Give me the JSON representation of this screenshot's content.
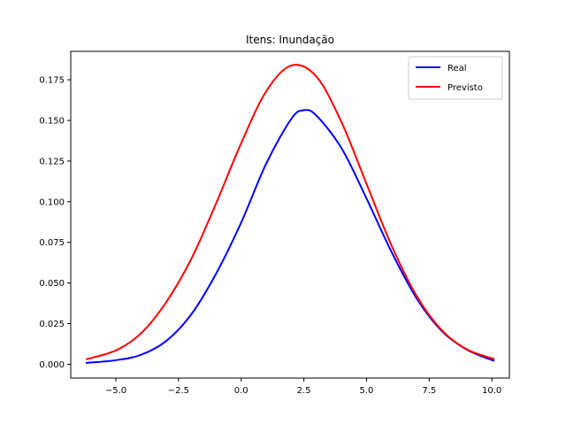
{
  "chart_data": {
    "type": "line",
    "title": "Itens: Inundação",
    "xlabel": "",
    "ylabel": "",
    "xlim": [
      -6.8,
      10.7
    ],
    "ylim": [
      -0.0085,
      0.1925
    ],
    "xticks": [
      -5.0,
      -2.5,
      0.0,
      2.5,
      5.0,
      7.5,
      10.0
    ],
    "xtick_labels": [
      "−5.0",
      "−2.5",
      "0.0",
      "2.5",
      "5.0",
      "7.5",
      "10.0"
    ],
    "yticks": [
      0.0,
      0.025,
      0.05,
      0.075,
      0.1,
      0.125,
      0.15,
      0.175
    ],
    "ytick_labels": [
      "0.000",
      "0.025",
      "0.050",
      "0.075",
      "0.100",
      "0.125",
      "0.150",
      "0.175"
    ],
    "grid": false,
    "legend_position": "top-right",
    "series": [
      {
        "name": "Real",
        "color": "#0000ff",
        "x": [
          -6.2,
          -5.0,
          -4.0,
          -3.0,
          -2.0,
          -1.0,
          0.0,
          1.0,
          2.0,
          2.5,
          3.0,
          4.0,
          5.0,
          6.0,
          7.0,
          8.0,
          9.0,
          10.1
        ],
        "y": [
          0.0008,
          0.0025,
          0.0058,
          0.0142,
          0.0305,
          0.0558,
          0.0872,
          0.1235,
          0.151,
          0.1563,
          0.153,
          0.133,
          0.102,
          0.069,
          0.0405,
          0.0205,
          0.009,
          0.002
        ]
      },
      {
        "name": "Previsto",
        "color": "#ff0000",
        "x": [
          -6.2,
          -5.0,
          -4.0,
          -3.0,
          -2.0,
          -1.0,
          0.0,
          1.0,
          2.0,
          3.0,
          4.0,
          5.0,
          6.0,
          7.0,
          8.0,
          9.0,
          10.1
        ],
        "y": [
          0.003,
          0.0085,
          0.019,
          0.038,
          0.0645,
          0.099,
          0.136,
          0.168,
          0.1838,
          0.177,
          0.149,
          0.111,
          0.073,
          0.042,
          0.021,
          0.0092,
          0.0032
        ]
      }
    ]
  }
}
